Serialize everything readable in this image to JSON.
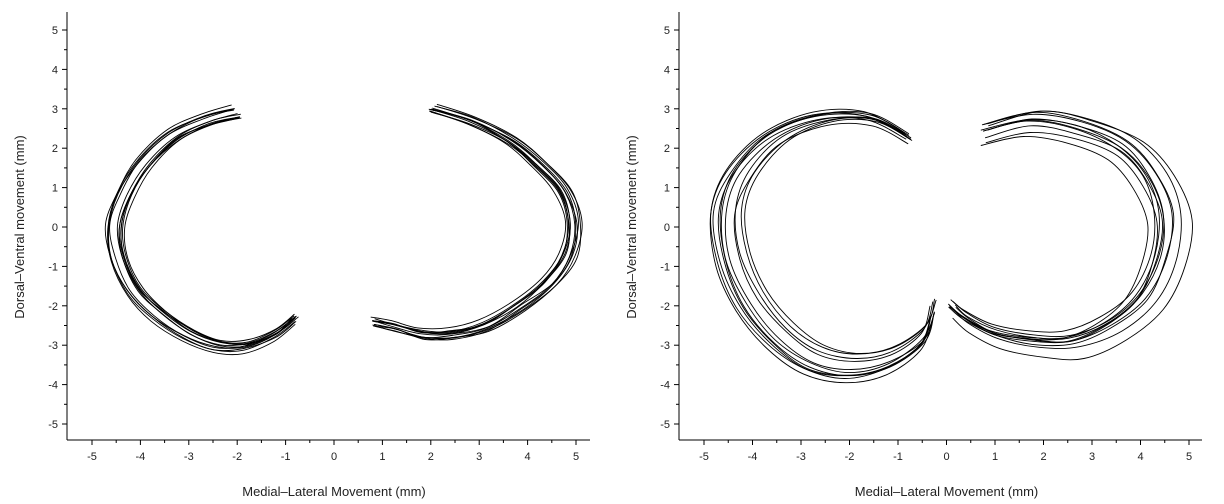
{
  "chart_data": [
    {
      "type": "line",
      "xlabel": "Medial–Lateral Movement (mm)",
      "ylabel": "Dorsal–Ventral movement (mm)",
      "xlim": [
        -5,
        5
      ],
      "ylim": [
        -5,
        5
      ],
      "x_ticks": [
        "-5",
        "-4",
        "-3",
        "-2",
        "-1",
        "0",
        "1",
        "2",
        "3",
        "4",
        "5"
      ],
      "y_ticks": [
        "-5",
        "-4",
        "-3",
        "-2",
        "-1",
        "0",
        "1",
        "2",
        "3",
        "4",
        "5"
      ],
      "grid": false,
      "series": [
        {
          "x": [
            -2.0,
            -2.6,
            -3.3,
            -3.9,
            -4.3,
            -4.5,
            -4.4,
            -4.1,
            -3.6,
            -3.0,
            -2.4,
            -1.8,
            -1.2,
            -0.8
          ],
          "y": [
            2.9,
            2.7,
            2.3,
            1.6,
            0.8,
            0.0,
            -0.8,
            -1.6,
            -2.2,
            -2.7,
            -3.0,
            -3.0,
            -2.7,
            -2.3
          ]
        },
        {
          "x": [
            2.0,
            2.8,
            3.6,
            4.2,
            4.7,
            4.9,
            4.8,
            4.4,
            3.8,
            3.1,
            2.4,
            1.8,
            1.2,
            0.8
          ],
          "y": [
            3.0,
            2.7,
            2.2,
            1.6,
            0.9,
            0.1,
            -0.7,
            -1.4,
            -2.0,
            -2.5,
            -2.7,
            -2.7,
            -2.5,
            -2.4
          ]
        }
      ]
    },
    {
      "type": "line",
      "xlabel": "Medial–Lateral Movement (mm)",
      "ylabel": "Dorsal–Ventral movement (mm)",
      "xlim": [
        -5,
        5
      ],
      "ylim": [
        -5,
        5
      ],
      "x_ticks": [
        "-5",
        "-4",
        "-3",
        "-2",
        "-1",
        "0",
        "1",
        "2",
        "3",
        "4",
        "5"
      ],
      "y_ticks": [
        "-5",
        "-4",
        "-3",
        "-2",
        "-1",
        "0",
        "1",
        "2",
        "3",
        "4",
        "5"
      ],
      "grid": false,
      "series": [
        {
          "x": [
            -0.8,
            -1.6,
            -2.6,
            -3.6,
            -4.3,
            -4.6,
            -4.5,
            -4.1,
            -3.5,
            -2.8,
            -2.0,
            -1.2,
            -0.5,
            -0.3
          ],
          "y": [
            2.3,
            2.8,
            2.8,
            2.3,
            1.4,
            0.4,
            -0.8,
            -1.9,
            -2.8,
            -3.4,
            -3.6,
            -3.4,
            -2.8,
            -2.1
          ]
        },
        {
          "x": [
            0.8,
            1.8,
            2.8,
            3.7,
            4.3,
            4.6,
            4.5,
            4.1,
            3.4,
            2.6,
            1.8,
            1.0,
            0.4,
            0.1
          ],
          "y": [
            2.4,
            2.7,
            2.5,
            2.0,
            1.2,
            0.2,
            -0.9,
            -1.9,
            -2.6,
            -3.0,
            -3.0,
            -2.8,
            -2.4,
            -2.1
          ]
        }
      ]
    }
  ]
}
